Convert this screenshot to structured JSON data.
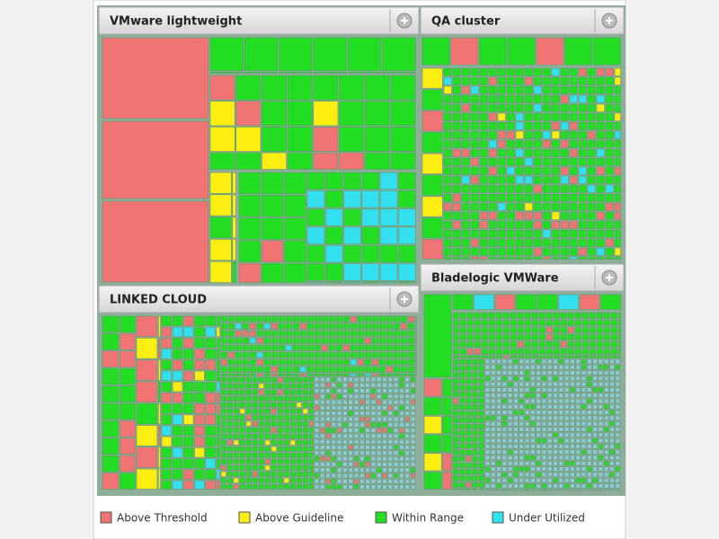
{
  "panels": [
    {
      "title": "VMware lightweight"
    },
    {
      "title": "QA cluster"
    },
    {
      "title": "LINKED CLOUD"
    },
    {
      "title": "Bladelogic VMWare"
    }
  ],
  "legend": [
    {
      "label": "Above Threshold"
    },
    {
      "label": "Above Guideline"
    },
    {
      "label": "Within Range"
    },
    {
      "label": "Under Utilized"
    }
  ]
}
